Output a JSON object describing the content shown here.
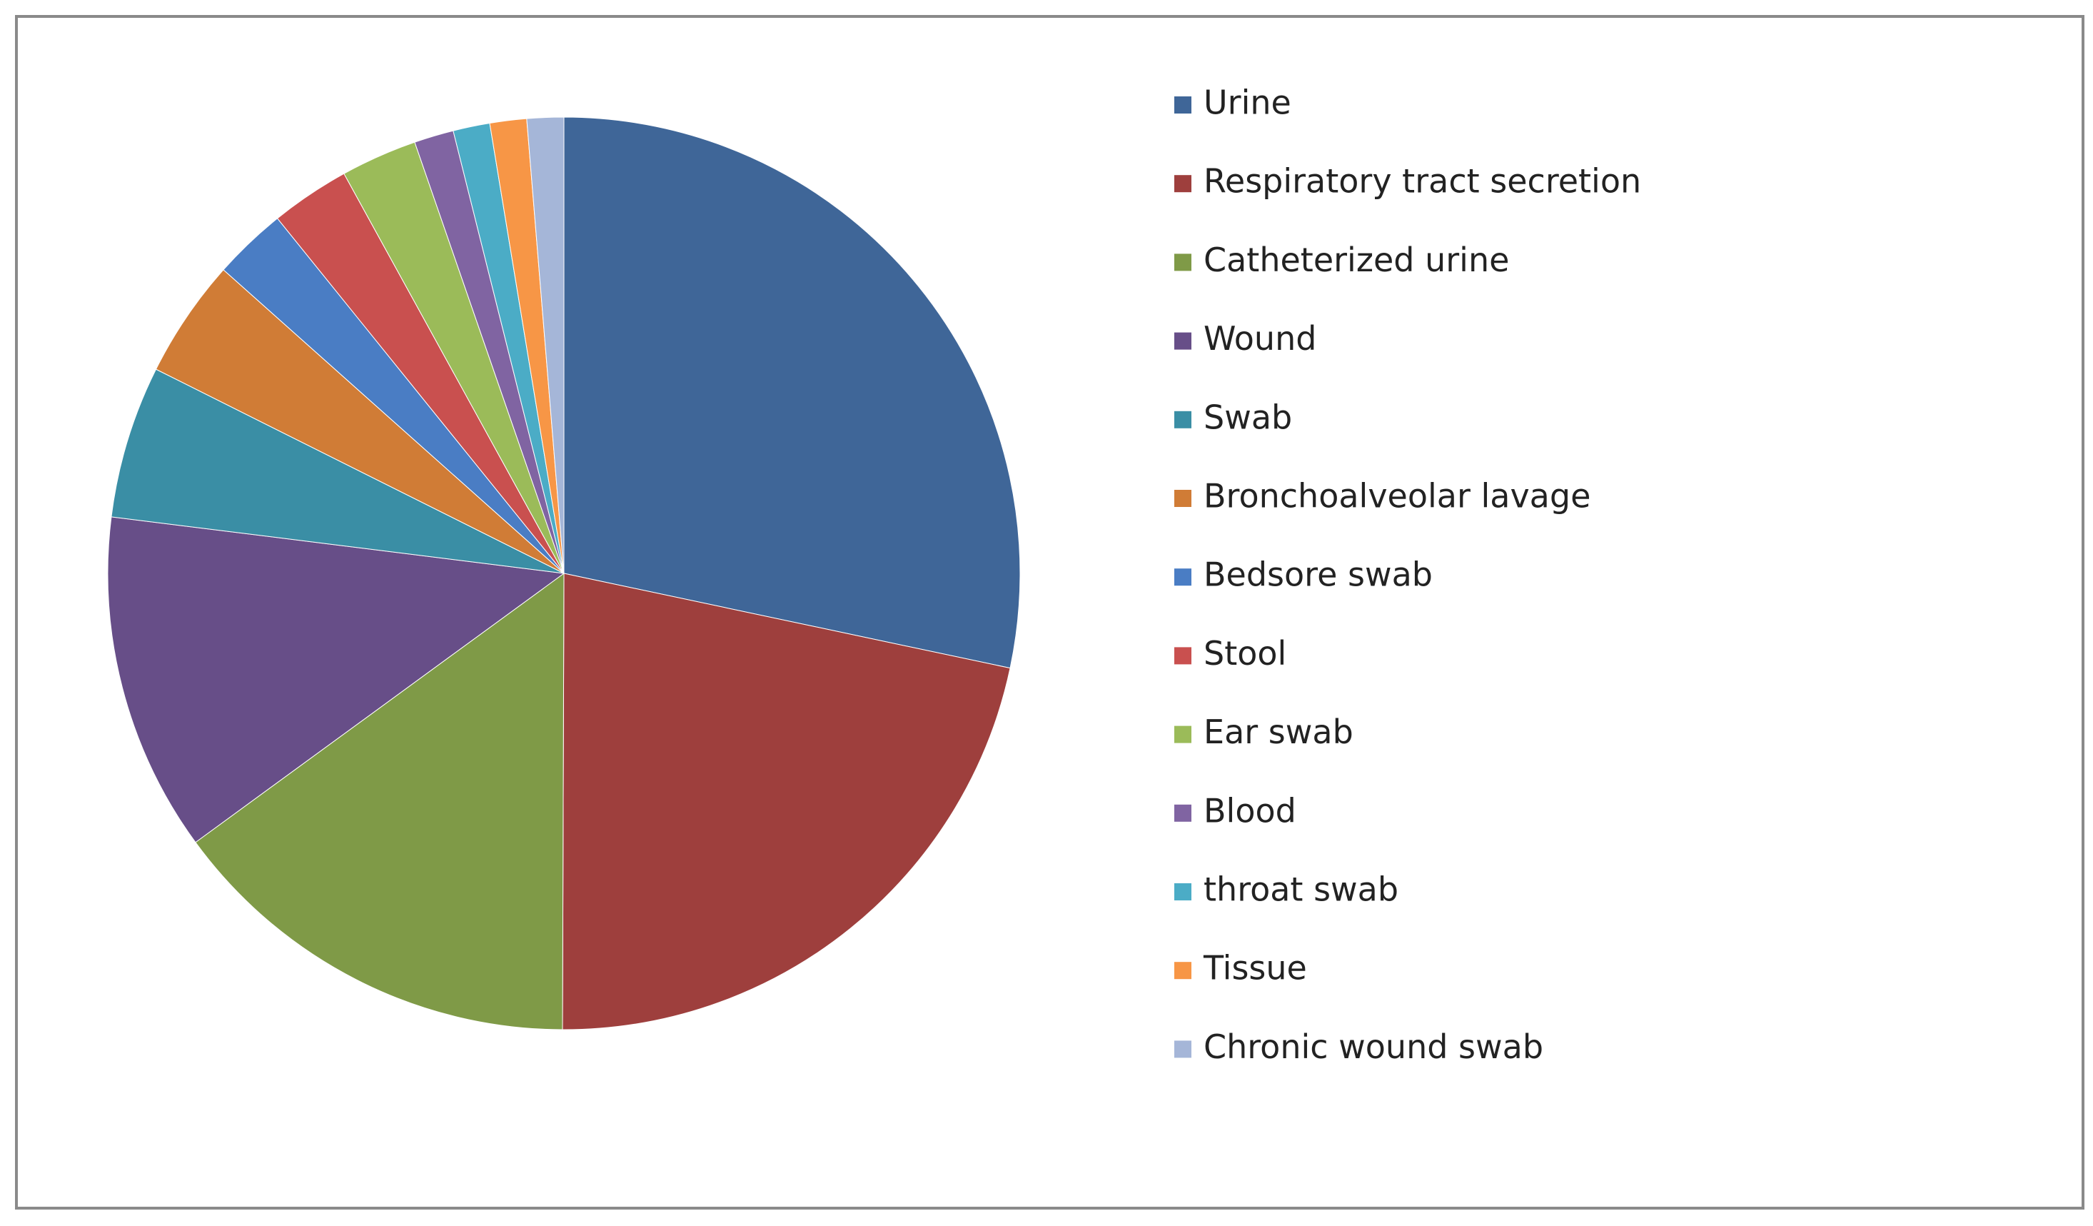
{
  "chart_data": {
    "type": "pie",
    "legend": "right",
    "categories": [
      "Urine",
      "Respiratory tract secretion",
      "Catheterized urine",
      "Wound",
      "Swab",
      "Bronchoalveolar lavage",
      "Bedsore swab",
      "Stool",
      "Ear swab",
      "Blood",
      "throat swab",
      "Tissue",
      "Chronic wound swab"
    ],
    "values": [
      28.3,
      21.7,
      14.9,
      12.0,
      5.4,
      4.2,
      2.6,
      2.8,
      2.7,
      1.4,
      1.3,
      1.3,
      1.3
    ],
    "colors": [
      "#3f6698",
      "#9e3f3d",
      "#7f9a47",
      "#674e88",
      "#3a8ea5",
      "#d07c36",
      "#4a7dc4",
      "#c9504f",
      "#9bbb59",
      "#8064a2",
      "#4bacc6",
      "#f79646",
      "#a5b6d8"
    ]
  }
}
